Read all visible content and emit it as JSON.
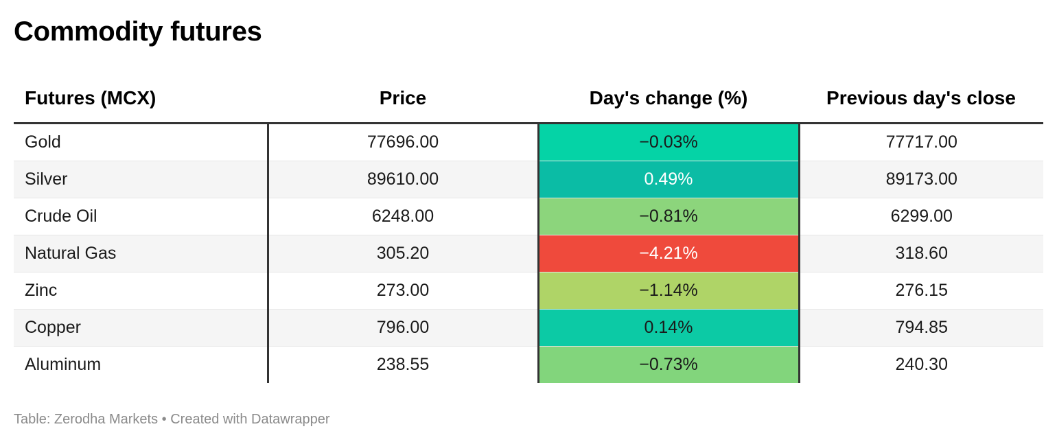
{
  "title": "Commodity futures",
  "columns": [
    "Futures (MCX)",
    "Price",
    "Day's change (%)",
    "Previous day's close"
  ],
  "rows": [
    {
      "name": "Gold",
      "price": "77696.00",
      "change": "−0.03%",
      "prev_close": "77717.00",
      "change_bg": "#05d3a6",
      "change_fg": "#1a1a1a"
    },
    {
      "name": "Silver",
      "price": "89610.00",
      "change": "0.49%",
      "prev_close": "89173.00",
      "change_bg": "#0bbca5",
      "change_fg": "#ffffff"
    },
    {
      "name": "Crude Oil",
      "price": "6248.00",
      "change": "−0.81%",
      "prev_close": "6299.00",
      "change_bg": "#8cd57c",
      "change_fg": "#1a1a1a"
    },
    {
      "name": "Natural Gas",
      "price": "305.20",
      "change": "−4.21%",
      "prev_close": "318.60",
      "change_bg": "#ef4a3c",
      "change_fg": "#ffffff"
    },
    {
      "name": "Zinc",
      "price": "273.00",
      "change": "−1.14%",
      "prev_close": "276.15",
      "change_bg": "#afd467",
      "change_fg": "#1a1a1a"
    },
    {
      "name": "Copper",
      "price": "796.00",
      "change": "0.14%",
      "prev_close": "794.85",
      "change_bg": "#0ccaa5",
      "change_fg": "#1a1a1a"
    },
    {
      "name": "Aluminum",
      "price": "238.55",
      "change": "−0.73%",
      "prev_close": "240.30",
      "change_bg": "#82d57c",
      "change_fg": "#1a1a1a"
    }
  ],
  "source": "Table: Zerodha Markets • Created with Datawrapper",
  "chart_data": {
    "type": "table",
    "title": "Commodity futures",
    "columns": [
      "Futures (MCX)",
      "Price",
      "Day's change (%)",
      "Previous day's close"
    ],
    "rows": [
      [
        "Gold",
        77696.0,
        -0.03,
        77717.0
      ],
      [
        "Silver",
        89610.0,
        0.49,
        89173.0
      ],
      [
        "Crude Oil",
        6248.0,
        -0.81,
        6299.0
      ],
      [
        "Natural Gas",
        305.2,
        -4.21,
        318.6
      ],
      [
        "Zinc",
        273.0,
        -1.14,
        276.15
      ],
      [
        "Copper",
        796.0,
        0.14,
        794.85
      ],
      [
        "Aluminum",
        238.55,
        -0.73,
        240.3
      ]
    ]
  }
}
